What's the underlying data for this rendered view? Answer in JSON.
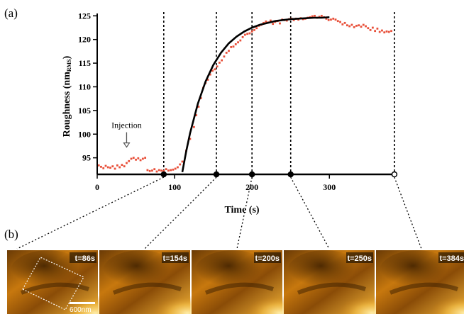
{
  "panel_a_label": "(a)",
  "panel_b_label": "(b)",
  "scale_bar_label": "600nm",
  "chart_data": {
    "type": "scatter",
    "title": "",
    "xlabel": "Time (s)",
    "ylabel": "Roughness (nm",
    "ylabel_subscript": "RMS",
    "ylabel_close": ")",
    "xlim": [
      0,
      385
    ],
    "ylim": [
      91.5,
      125.5
    ],
    "xticks": [
      0,
      100,
      200,
      300
    ],
    "yticks": [
      95,
      100,
      105,
      110,
      115,
      120,
      125
    ],
    "grid": false,
    "annotation": {
      "text": "Injection",
      "x": 38,
      "y": 99.5
    },
    "marker_times": [
      86,
      154,
      200,
      250,
      384
    ],
    "marker_labels": [
      "t=86s",
      "t=154s",
      "t=200s",
      "t=250s",
      "t=384s"
    ],
    "series": [
      {
        "kind": "scatter",
        "color": "#e8503a",
        "x": [
          2,
          5,
          8,
          11,
          14,
          17,
          20,
          23,
          26,
          29,
          32,
          35,
          38,
          41,
          44,
          47,
          50,
          53,
          56,
          59,
          62,
          65,
          68,
          71,
          74,
          77,
          80,
          83,
          86,
          89,
          92,
          95,
          98,
          101,
          104,
          107,
          110,
          115,
          120,
          125,
          128,
          131,
          134,
          137,
          140,
          143,
          146,
          149,
          152,
          155,
          158,
          161,
          164,
          167,
          170,
          173,
          176,
          179,
          182,
          185,
          188,
          191,
          194,
          197,
          200,
          203,
          206,
          209,
          212,
          215,
          218,
          221,
          224,
          227,
          230,
          233,
          236,
          239,
          242,
          245,
          248,
          251,
          254,
          257,
          260,
          263,
          266,
          269,
          272,
          275,
          278,
          281,
          284,
          287,
          290,
          293,
          296,
          299,
          302,
          305,
          308,
          311,
          314,
          317,
          320,
          323,
          326,
          329,
          332,
          335,
          338,
          341,
          344,
          347,
          350,
          353,
          356,
          359,
          362,
          365,
          368,
          371,
          374,
          377,
          380
        ],
        "y": [
          93.4,
          93.1,
          92.8,
          93.3,
          93.0,
          92.9,
          93.2,
          92.7,
          93.4,
          93.0,
          93.5,
          93.2,
          93.9,
          94.3,
          94.8,
          95.0,
          94.6,
          94.9,
          94.5,
          94.8,
          95.0,
          92.4,
          92.2,
          92.3,
          92.6,
          92.1,
          92.4,
          92.3,
          92.2,
          92.6,
          92.3,
          92.4,
          92.5,
          92.7,
          93.0,
          93.6,
          94.2,
          96.5,
          99.0,
          101.5,
          104.0,
          105.8,
          107.6,
          109.8,
          110.8,
          111.5,
          112.6,
          113.4,
          113.7,
          114.3,
          115.1,
          115.6,
          116.4,
          117.2,
          117.6,
          118.4,
          118.5,
          119.0,
          119.4,
          119.8,
          120.5,
          121.0,
          121.2,
          121.3,
          121.7,
          122.0,
          122.4,
          122.9,
          123.1,
          123.5,
          123.8,
          123.6,
          124.0,
          123.3,
          123.7,
          123.9,
          123.4,
          124.2,
          124.1,
          124.0,
          124.3,
          124.4,
          124.1,
          124.4,
          124.2,
          124.5,
          124.3,
          124.4,
          124.6,
          124.7,
          124.9,
          125.0,
          124.6,
          124.8,
          125.0,
          124.7,
          124.4,
          124.1,
          124.2,
          124.4,
          124.2,
          123.9,
          123.7,
          123.2,
          123.5,
          123.0,
          122.8,
          123.1,
          122.6,
          122.9,
          123.0,
          122.7,
          123.1,
          122.8,
          122.4,
          122.0,
          122.5,
          121.8,
          122.3,
          121.6,
          121.9,
          121.5,
          121.7,
          121.6,
          121.8
        ]
      },
      {
        "kind": "line",
        "color": "#000000",
        "x": [
          110,
          115,
          120,
          130,
          140,
          150,
          160,
          170,
          180,
          190,
          200,
          210,
          220,
          230,
          240,
          250,
          260,
          270,
          280,
          290,
          300
        ],
        "y": [
          92.0,
          96.4,
          100.2,
          106.4,
          111.1,
          114.6,
          117.2,
          119.2,
          120.6,
          121.7,
          122.5,
          123.1,
          123.5,
          123.9,
          124.1,
          124.3,
          124.4,
          124.5,
          124.6,
          124.6,
          124.7
        ]
      }
    ]
  },
  "colors": {
    "frame_dark": "#4a2600",
    "frame_mid": "#c7780e",
    "frame_light": "#f6c24a"
  }
}
